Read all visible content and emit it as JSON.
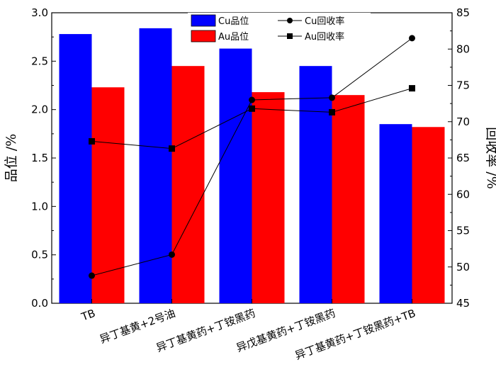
{
  "chart_data": {
    "type": "bar",
    "categories": [
      "TB",
      "异丁基黄+2号油",
      "异丁基黄药+丁铵黑药",
      "异戊基黄药+丁铵黑药",
      "异丁基黄药+丁铵黑药+TB"
    ],
    "series": [
      {
        "name": "Cu品位",
        "type": "bar",
        "axis": "left",
        "values": [
          2.78,
          2.84,
          2.63,
          2.45,
          1.85
        ],
        "color": "#0000ff"
      },
      {
        "name": "Au品位",
        "type": "bar",
        "axis": "left",
        "values": [
          2.23,
          2.45,
          2.18,
          2.15,
          1.82
        ],
        "color": "#ff0000"
      },
      {
        "name": "Cu回收率",
        "type": "line",
        "marker": "circle",
        "axis": "right",
        "values": [
          48.8,
          51.7,
          73.0,
          73.3,
          81.5
        ],
        "color": "#000000"
      },
      {
        "name": "Au回收率",
        "type": "line",
        "marker": "square",
        "axis": "right",
        "values": [
          67.3,
          66.3,
          71.8,
          71.3,
          74.6
        ],
        "color": "#000000"
      }
    ],
    "ylabel": "品位 /%",
    "y2label": "回收率 /%",
    "ylim": [
      0.0,
      3.0
    ],
    "y2lim": [
      45,
      85
    ],
    "yticks": [
      "0.0",
      "0.5",
      "1.0",
      "1.5",
      "2.0",
      "2.5",
      "3.0"
    ],
    "y2ticks": [
      "45",
      "50",
      "55",
      "60",
      "65",
      "70",
      "75",
      "80",
      "85"
    ],
    "grid": false,
    "legend_position": "top-center"
  }
}
